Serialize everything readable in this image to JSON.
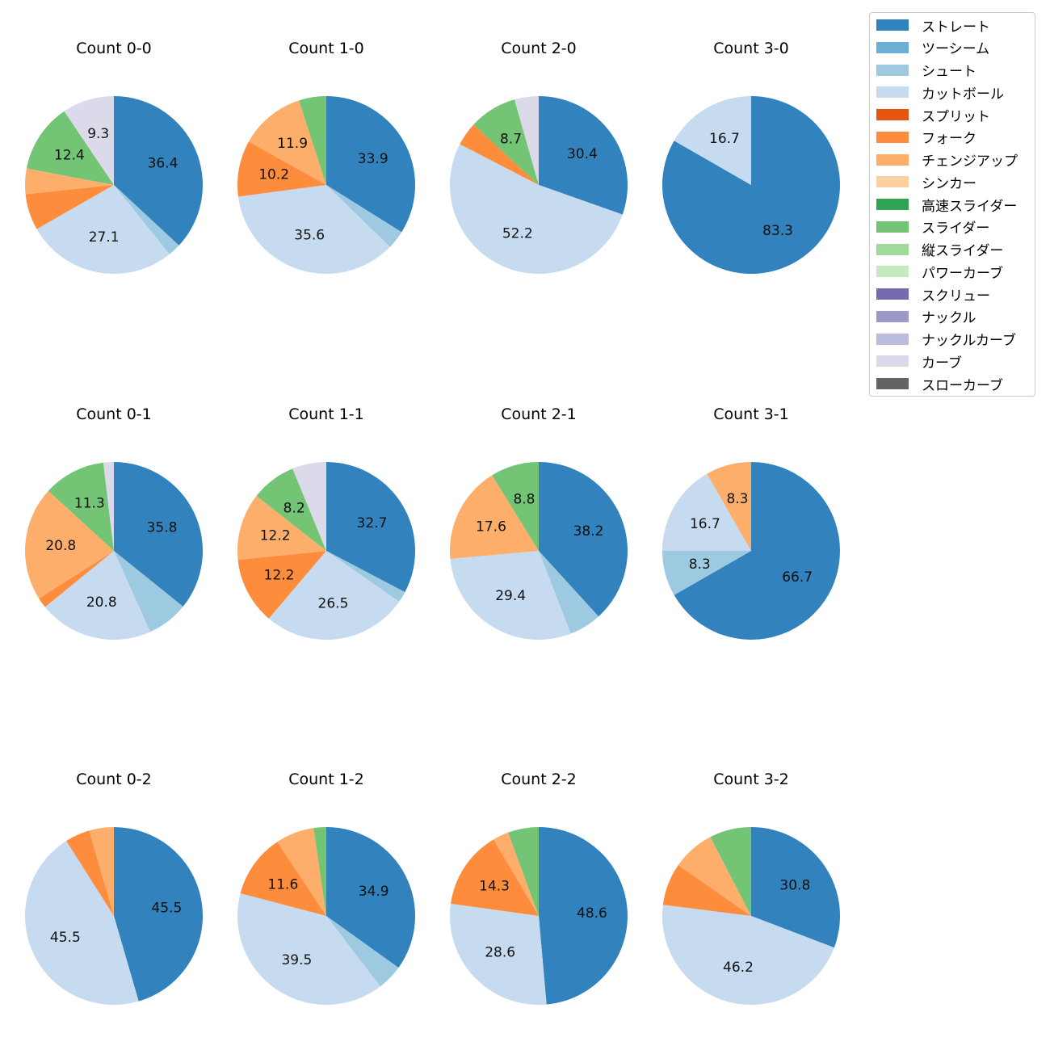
{
  "chart_data": {
    "type": "pie",
    "legend": {
      "placement": "top-right",
      "entries": [
        {
          "name": "ストレート",
          "color": "#3182bd"
        },
        {
          "name": "ツーシーム",
          "color": "#6baed6"
        },
        {
          "name": "シュート",
          "color": "#9ecae1"
        },
        {
          "name": "カットボール",
          "color": "#c6dbef"
        },
        {
          "name": "スプリット",
          "color": "#e6550d"
        },
        {
          "name": "フォーク",
          "color": "#fd8d3c"
        },
        {
          "name": "チェンジアップ",
          "color": "#fdae6b"
        },
        {
          "name": "シンカー",
          "color": "#fdd0a2"
        },
        {
          "name": "高速スライダー",
          "color": "#31a354"
        },
        {
          "name": "スライダー",
          "color": "#74c476"
        },
        {
          "name": "縦スライダー",
          "color": "#a1d99b"
        },
        {
          "name": "パワーカーブ",
          "color": "#c7e9c0"
        },
        {
          "name": "スクリュー",
          "color": "#756bb1"
        },
        {
          "name": "ナックル",
          "color": "#9e9ac8"
        },
        {
          "name": "ナックルカーブ",
          "color": "#bcbddc"
        },
        {
          "name": "カーブ",
          "color": "#dadaeb"
        },
        {
          "name": "スローカーブ",
          "color": "#636363"
        }
      ]
    },
    "pies": [
      {
        "title": "Count 0-0",
        "slices": [
          {
            "pitch": "ストレート",
            "value": 36.4,
            "label": "36.4"
          },
          {
            "pitch": "シュート",
            "value": 2.3,
            "label": ""
          },
          {
            "pitch": "カットボール",
            "value": 27.1,
            "label": "27.1"
          },
          {
            "pitch": "フォーク",
            "value": 6.5,
            "label": ""
          },
          {
            "pitch": "チェンジアップ",
            "value": 4.6,
            "label": ""
          },
          {
            "pitch": "スライダー",
            "value": 12.4,
            "label": "12.4"
          },
          {
            "pitch": "カーブ",
            "value": 9.3,
            "label": "9.3"
          }
        ]
      },
      {
        "title": "Count 1-0",
        "slices": [
          {
            "pitch": "ストレート",
            "value": 33.9,
            "label": "33.9"
          },
          {
            "pitch": "シュート",
            "value": 3.4,
            "label": ""
          },
          {
            "pitch": "カットボール",
            "value": 35.6,
            "label": "35.6"
          },
          {
            "pitch": "フォーク",
            "value": 10.2,
            "label": "10.2"
          },
          {
            "pitch": "チェンジアップ",
            "value": 11.9,
            "label": "11.9"
          },
          {
            "pitch": "スライダー",
            "value": 5.0,
            "label": ""
          }
        ]
      },
      {
        "title": "Count 2-0",
        "slices": [
          {
            "pitch": "ストレート",
            "value": 30.4,
            "label": "30.4"
          },
          {
            "pitch": "カットボール",
            "value": 52.2,
            "label": "52.2"
          },
          {
            "pitch": "フォーク",
            "value": 4.3,
            "label": ""
          },
          {
            "pitch": "スライダー",
            "value": 8.7,
            "label": "8.7"
          },
          {
            "pitch": "カーブ",
            "value": 4.4,
            "label": ""
          }
        ]
      },
      {
        "title": "Count 3-0",
        "slices": [
          {
            "pitch": "ストレート",
            "value": 83.3,
            "label": "83.3"
          },
          {
            "pitch": "カットボール",
            "value": 16.7,
            "label": "16.7"
          }
        ]
      },
      {
        "title": "Count 0-1",
        "slices": [
          {
            "pitch": "ストレート",
            "value": 35.8,
            "label": "35.8"
          },
          {
            "pitch": "シュート",
            "value": 7.5,
            "label": ""
          },
          {
            "pitch": "カットボール",
            "value": 20.8,
            "label": "20.8"
          },
          {
            "pitch": "フォーク",
            "value": 1.9,
            "label": ""
          },
          {
            "pitch": "チェンジアップ",
            "value": 20.8,
            "label": "20.8"
          },
          {
            "pitch": "スライダー",
            "value": 11.3,
            "label": "11.3"
          },
          {
            "pitch": "カーブ",
            "value": 1.9,
            "label": ""
          }
        ]
      },
      {
        "title": "Count 1-1",
        "slices": [
          {
            "pitch": "ストレート",
            "value": 32.7,
            "label": "32.7"
          },
          {
            "pitch": "シュート",
            "value": 2.0,
            "label": ""
          },
          {
            "pitch": "カットボール",
            "value": 26.5,
            "label": "26.5"
          },
          {
            "pitch": "フォーク",
            "value": 12.2,
            "label": "12.2"
          },
          {
            "pitch": "チェンジアップ",
            "value": 12.2,
            "label": "12.2"
          },
          {
            "pitch": "スライダー",
            "value": 8.2,
            "label": "8.2"
          },
          {
            "pitch": "カーブ",
            "value": 6.2,
            "label": ""
          }
        ]
      },
      {
        "title": "Count 2-1",
        "slices": [
          {
            "pitch": "ストレート",
            "value": 38.2,
            "label": "38.2"
          },
          {
            "pitch": "シュート",
            "value": 5.9,
            "label": ""
          },
          {
            "pitch": "カットボール",
            "value": 29.4,
            "label": "29.4"
          },
          {
            "pitch": "チェンジアップ",
            "value": 17.6,
            "label": "17.6"
          },
          {
            "pitch": "スライダー",
            "value": 8.8,
            "label": "8.8"
          }
        ]
      },
      {
        "title": "Count 3-1",
        "slices": [
          {
            "pitch": "ストレート",
            "value": 66.7,
            "label": "66.7"
          },
          {
            "pitch": "シュート",
            "value": 8.3,
            "label": "8.3"
          },
          {
            "pitch": "カットボール",
            "value": 16.7,
            "label": "16.7"
          },
          {
            "pitch": "チェンジアップ",
            "value": 8.3,
            "label": "8.3"
          }
        ]
      },
      {
        "title": "Count 0-2",
        "slices": [
          {
            "pitch": "ストレート",
            "value": 45.5,
            "label": "45.5"
          },
          {
            "pitch": "カットボール",
            "value": 45.5,
            "label": "45.5"
          },
          {
            "pitch": "フォーク",
            "value": 4.5,
            "label": ""
          },
          {
            "pitch": "チェンジアップ",
            "value": 4.5,
            "label": ""
          }
        ]
      },
      {
        "title": "Count 1-2",
        "slices": [
          {
            "pitch": "ストレート",
            "value": 34.9,
            "label": "34.9"
          },
          {
            "pitch": "シュート",
            "value": 4.7,
            "label": ""
          },
          {
            "pitch": "カットボール",
            "value": 39.5,
            "label": "39.5"
          },
          {
            "pitch": "フォーク",
            "value": 11.6,
            "label": "11.6"
          },
          {
            "pitch": "チェンジアップ",
            "value": 7.0,
            "label": ""
          },
          {
            "pitch": "スライダー",
            "value": 2.3,
            "label": ""
          }
        ]
      },
      {
        "title": "Count 2-2",
        "slices": [
          {
            "pitch": "ストレート",
            "value": 48.6,
            "label": "48.6"
          },
          {
            "pitch": "カットボール",
            "value": 28.6,
            "label": "28.6"
          },
          {
            "pitch": "フォーク",
            "value": 14.3,
            "label": "14.3"
          },
          {
            "pitch": "チェンジアップ",
            "value": 2.9,
            "label": ""
          },
          {
            "pitch": "スライダー",
            "value": 5.6,
            "label": ""
          }
        ]
      },
      {
        "title": "Count 3-2",
        "slices": [
          {
            "pitch": "ストレート",
            "value": 30.8,
            "label": "30.8"
          },
          {
            "pitch": "カットボール",
            "value": 46.2,
            "label": "46.2"
          },
          {
            "pitch": "フォーク",
            "value": 7.7,
            "label": ""
          },
          {
            "pitch": "チェンジアップ",
            "value": 7.7,
            "label": ""
          },
          {
            "pitch": "スライダー",
            "value": 7.6,
            "label": ""
          }
        ]
      }
    ]
  }
}
